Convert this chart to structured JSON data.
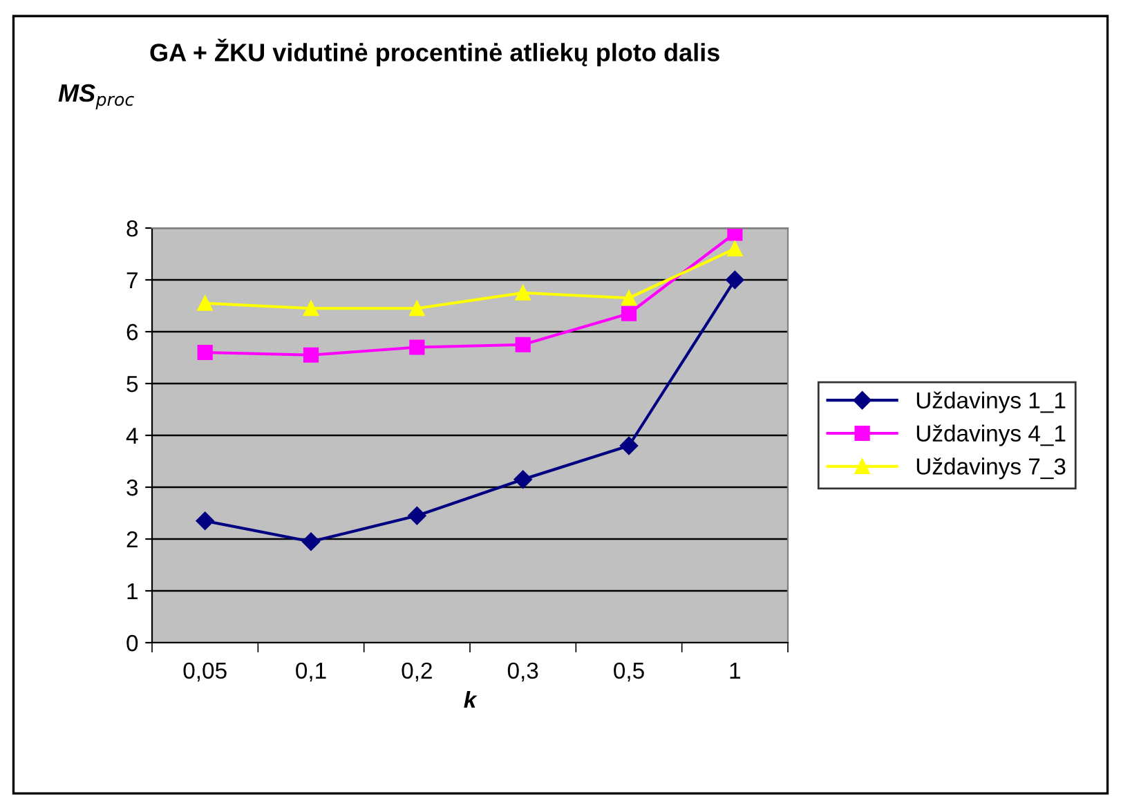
{
  "chart_data": {
    "type": "line",
    "title": "GA + ŽKU vidutinė procentinė atliekų ploto dalis",
    "ylabel": "MS$_{proc}$",
    "xlabel": "k",
    "categories": [
      "0,05",
      "0,1",
      "0,2",
      "0,3",
      "0,5",
      "1"
    ],
    "series": [
      {
        "name": "Uždavinys 1_1",
        "color": "#000080",
        "marker": "diamond",
        "values": [
          2.35,
          1.95,
          2.45,
          3.15,
          3.8,
          7.0
        ]
      },
      {
        "name": "Uždavinys 4_1",
        "color": "#ff00ff",
        "marker": "square",
        "values": [
          5.6,
          5.55,
          5.7,
          5.75,
          6.35,
          7.9
        ]
      },
      {
        "name": "Uždavinys 7_3",
        "color": "#ffff00",
        "marker": "triangle",
        "values": [
          6.55,
          6.45,
          6.45,
          6.75,
          6.65,
          7.6
        ]
      }
    ],
    "ylim": [
      0,
      8
    ],
    "yticks": [
      0,
      1,
      2,
      3,
      4,
      5,
      6,
      7,
      8
    ],
    "grid": "y",
    "legend": "right",
    "line_style": "solid"
  }
}
